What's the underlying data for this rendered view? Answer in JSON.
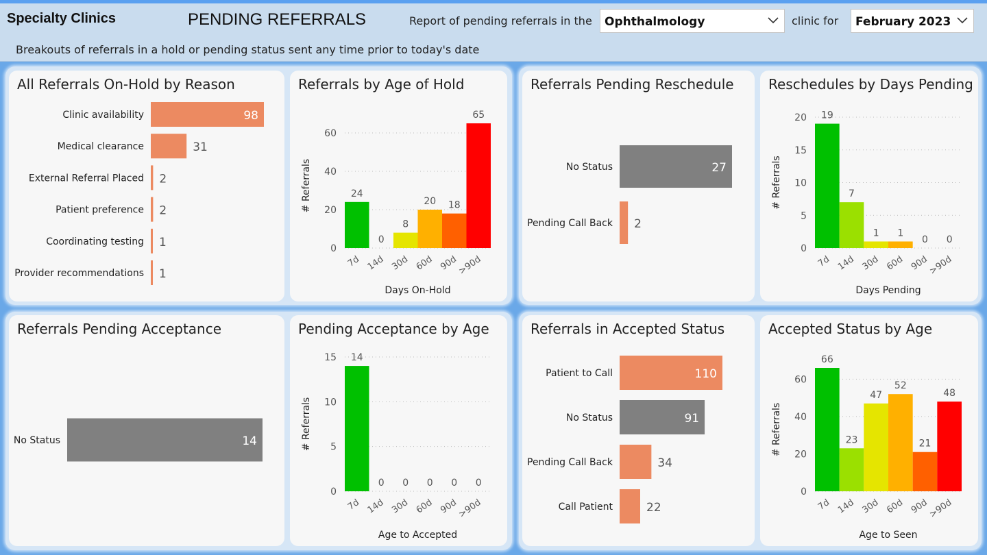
{
  "header": {
    "app_title": "Specialty Clinics",
    "page_title": "PENDING REFERRALS",
    "subtitle": "Breakouts of referrals in a hold or pending status sent any time prior to today's date",
    "report_prefix": "Report of pending referrals in the",
    "clinic_select": "Ophthalmology",
    "report_mid": "clinic for",
    "month_select": "February 2023"
  },
  "colors": {
    "bar_orange": "#ec8a61",
    "bar_gray": "#808080",
    "age_colors": [
      "#00c000",
      "#9be000",
      "#e5e500",
      "#ffb000",
      "#ff6000",
      "#ff0000"
    ]
  },
  "cards": {
    "hold_reason": {
      "title": "All Referrals On-Hold by Reason"
    },
    "hold_age": {
      "title": "Referrals by Age of Hold"
    },
    "resched": {
      "title": "Referrals Pending Reschedule"
    },
    "resched_age": {
      "title": "Reschedules by Days Pending"
    },
    "acceptance": {
      "title": "Referrals Pending Acceptance"
    },
    "acceptance_age": {
      "title": "Pending Acceptance by Age"
    },
    "accepted": {
      "title": "Referrals in Accepted Status"
    },
    "accepted_age": {
      "title": "Accepted Status by Age"
    }
  },
  "chart_data": [
    {
      "id": "hold_reason",
      "type": "bar",
      "orientation": "horizontal",
      "title": "All Referrals On-Hold by Reason",
      "categories": [
        "Clinic availability",
        "Medical clearance",
        "External Referral Placed",
        "Patient preference",
        "Coordinating testing",
        "Provider recommendations"
      ],
      "values": [
        98,
        31,
        2,
        2,
        1,
        1
      ],
      "bar_colors": [
        "orange",
        "orange",
        "orange",
        "orange",
        "orange",
        "orange"
      ]
    },
    {
      "id": "hold_age",
      "type": "bar",
      "title": "Referrals by Age of Hold",
      "categories": [
        "7d",
        "14d",
        "30d",
        "60d",
        "90d",
        ">90d"
      ],
      "values": [
        24,
        0,
        8,
        20,
        18,
        65
      ],
      "xlabel": "Days On-Hold",
      "ylabel": "# Referrals",
      "ylim": [
        0,
        65
      ],
      "yticks": [
        0,
        20,
        40,
        60
      ],
      "grid": true
    },
    {
      "id": "resched",
      "type": "bar",
      "orientation": "horizontal",
      "title": "Referrals Pending Reschedule",
      "categories": [
        "No Status",
        "Pending Call Back"
      ],
      "values": [
        27,
        2
      ],
      "bar_colors": [
        "gray",
        "orange"
      ]
    },
    {
      "id": "resched_age",
      "type": "bar",
      "title": "Reschedules by Days Pending",
      "categories": [
        "7d",
        "14d",
        "30d",
        "60d",
        "90d",
        ">90d"
      ],
      "values": [
        19,
        7,
        1,
        1,
        0,
        0
      ],
      "xlabel": "Days Pending",
      "ylabel": "# Referrals",
      "ylim": [
        0,
        20
      ],
      "yticks": [
        0,
        5,
        10,
        15,
        20
      ],
      "grid": true
    },
    {
      "id": "acceptance",
      "type": "bar",
      "orientation": "horizontal",
      "title": "Referrals Pending Acceptance",
      "categories": [
        "No Status"
      ],
      "values": [
        14
      ],
      "bar_colors": [
        "gray"
      ]
    },
    {
      "id": "acceptance_age",
      "type": "bar",
      "title": "Pending Acceptance by Age",
      "categories": [
        "7d",
        "14d",
        "30d",
        "60d",
        "90d",
        ">90d"
      ],
      "values": [
        14,
        0,
        0,
        0,
        0,
        0
      ],
      "xlabel": "Age to Accepted",
      "ylabel": "# Referrals",
      "ylim": [
        0,
        15
      ],
      "yticks": [
        0,
        5,
        10,
        15
      ],
      "grid": true
    },
    {
      "id": "accepted",
      "type": "bar",
      "orientation": "horizontal",
      "title": "Referrals in Accepted Status",
      "categories": [
        "Patient to Call",
        "No Status",
        "Pending Call Back",
        "Call Patient"
      ],
      "values": [
        110,
        91,
        34,
        22
      ],
      "bar_colors": [
        "orange",
        "gray",
        "orange",
        "orange"
      ]
    },
    {
      "id": "accepted_age",
      "type": "bar",
      "title": "Accepted Status by Age",
      "categories": [
        "7d",
        "14d",
        "30d",
        "60d",
        "90d",
        ">90d"
      ],
      "values": [
        66,
        23,
        47,
        52,
        21,
        48
      ],
      "xlabel": "Age to Seen",
      "ylabel": "# Referrals",
      "ylim": [
        0,
        66
      ],
      "yticks": [
        0,
        20,
        40,
        60
      ],
      "grid": true
    }
  ]
}
